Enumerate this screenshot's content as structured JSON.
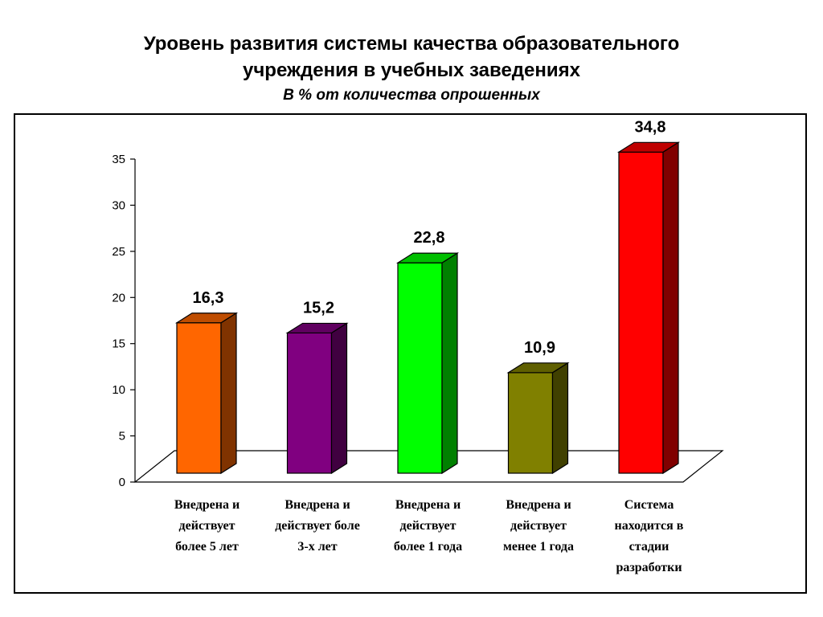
{
  "header": {
    "title_line1": "Уровень развития системы качества образовательного",
    "title_line2": "учреждения в учебных заведениях",
    "subtitle": "В % от количества опрошенных"
  },
  "chart_data": {
    "type": "bar",
    "title": "Уровень развития системы качества образовательного учреждения в учебных заведениях",
    "subtitle": "В % от количества опрошенных",
    "categories": [
      [
        "Внедрена и",
        "действует",
        "более 5 лет"
      ],
      [
        "Внедрена и",
        "действует боле",
        "3-х лет"
      ],
      [
        "Внедрена и",
        "действует",
        "более 1 года"
      ],
      [
        "Внедрена и",
        "действует",
        "менее 1 года"
      ],
      [
        "Система",
        "находится в",
        "стадии",
        "разработки"
      ]
    ],
    "values": [
      16.3,
      15.2,
      22.8,
      10.9,
      34.8
    ],
    "value_labels": [
      "16,3",
      "15,2",
      "22,8",
      "10,9",
      "34,8"
    ],
    "colors": [
      "#ff6600",
      "#800080",
      "#00ff00",
      "#808000",
      "#ff0000"
    ],
    "ylim": [
      0,
      35
    ],
    "yticks": [
      0,
      5,
      10,
      15,
      20,
      25,
      30,
      35
    ],
    "grid": false,
    "legend": "none"
  }
}
